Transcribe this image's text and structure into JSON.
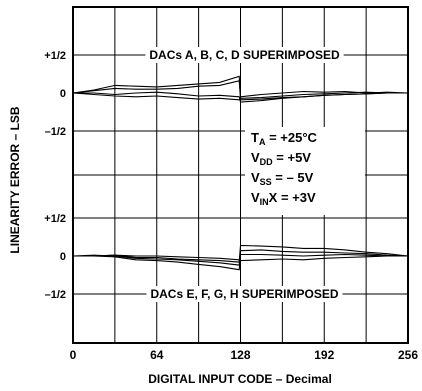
{
  "chart_data": {
    "type": "line",
    "xlabel": "DIGITAL INPUT CODE – Decimal",
    "ylabel": "LINEARITY ERROR – LSB",
    "xlim": [
      0,
      256
    ],
    "x_ticks": [
      0,
      64,
      128,
      192,
      256
    ],
    "x_tick_labels": [
      "0",
      "64",
      "128",
      "192",
      "256"
    ],
    "grid": true,
    "panels": [
      {
        "name": "top",
        "annotation": "DACs A, B, C, D SUPERIMPOSED",
        "ylim": [
          -0.75,
          0.75
        ],
        "y_ticks": [
          0.5,
          0,
          -0.5
        ],
        "y_tick_labels": [
          "+1/2",
          "0",
          "–1/2"
        ],
        "series": [
          {
            "x": [
              0,
              16,
              32,
              48,
              64,
              80,
              96,
              112,
              127,
              128,
              144,
              160,
              176,
              192,
              208,
              224,
              240,
              256
            ],
            "y": [
              0.0,
              0.04,
              0.1,
              0.09,
              0.08,
              0.1,
              0.12,
              0.14,
              0.22,
              -0.05,
              -0.02,
              0.0,
              0.02,
              0.01,
              0.02,
              0.0,
              0.01,
              0.0
            ]
          },
          {
            "x": [
              0,
              16,
              32,
              48,
              64,
              80,
              96,
              112,
              127,
              128,
              144,
              160,
              176,
              192,
              208,
              224,
              240,
              256
            ],
            "y": [
              0.0,
              0.03,
              0.06,
              0.05,
              0.05,
              0.06,
              0.09,
              0.1,
              0.16,
              -0.07,
              -0.06,
              -0.04,
              -0.02,
              -0.01,
              0.0,
              0.01,
              0.0,
              0.0
            ]
          },
          {
            "x": [
              0,
              16,
              32,
              48,
              64,
              80,
              96,
              112,
              127,
              128,
              144,
              160,
              176,
              192,
              208,
              224,
              240,
              256
            ],
            "y": [
              0.0,
              0.0,
              -0.02,
              0.0,
              0.01,
              -0.01,
              -0.04,
              -0.03,
              -0.05,
              -0.12,
              -0.1,
              -0.07,
              -0.05,
              -0.03,
              -0.02,
              -0.01,
              0.0,
              0.0
            ]
          },
          {
            "x": [
              0,
              16,
              32,
              48,
              64,
              80,
              96,
              112,
              127,
              128,
              144,
              160,
              176,
              192,
              208,
              224,
              240,
              256
            ],
            "y": [
              0.0,
              -0.02,
              -0.04,
              -0.05,
              -0.04,
              -0.06,
              -0.08,
              -0.07,
              -0.09,
              -0.09,
              -0.08,
              -0.06,
              -0.05,
              -0.03,
              -0.02,
              -0.01,
              0.0,
              0.0
            ]
          }
        ]
      },
      {
        "name": "bottom",
        "annotation": "DACs E, F, G, H SUPERIMPOSED",
        "ylim": [
          -0.75,
          0.75
        ],
        "y_ticks": [
          0.5,
          0,
          -0.5
        ],
        "y_tick_labels": [
          "+1/2",
          "0",
          "–1/2"
        ],
        "series": [
          {
            "x": [
              0,
              16,
              32,
              48,
              64,
              80,
              96,
              112,
              127,
              128,
              144,
              160,
              176,
              192,
              208,
              224,
              240,
              256
            ],
            "y": [
              0.0,
              0.0,
              0.01,
              -0.02,
              -0.02,
              -0.04,
              -0.05,
              -0.06,
              -0.08,
              0.14,
              0.13,
              0.12,
              0.1,
              0.1,
              0.08,
              0.05,
              0.03,
              0.0
            ]
          },
          {
            "x": [
              0,
              16,
              32,
              48,
              64,
              80,
              96,
              112,
              127,
              128,
              144,
              160,
              176,
              192,
              208,
              224,
              240,
              256
            ],
            "y": [
              0.0,
              0.01,
              0.0,
              -0.03,
              -0.04,
              -0.05,
              -0.07,
              -0.09,
              -0.12,
              0.07,
              0.08,
              0.06,
              0.05,
              0.05,
              0.04,
              0.03,
              0.01,
              0.0
            ]
          },
          {
            "x": [
              0,
              16,
              32,
              48,
              64,
              80,
              96,
              112,
              127,
              128,
              144,
              160,
              176,
              192,
              208,
              224,
              240,
              256
            ],
            "y": [
              0.0,
              0.0,
              -0.01,
              -0.05,
              -0.06,
              -0.08,
              -0.11,
              -0.14,
              -0.18,
              0.02,
              0.02,
              0.01,
              0.0,
              0.01,
              0.02,
              0.01,
              0.0,
              0.0
            ]
          },
          {
            "x": [
              0,
              16,
              32,
              48,
              64,
              80,
              96,
              112,
              127,
              128,
              144,
              160,
              176,
              192,
              208,
              224,
              240,
              256
            ],
            "y": [
              0.0,
              0.0,
              0.01,
              0.0,
              0.0,
              -0.01,
              -0.02,
              -0.03,
              -0.05,
              -0.06,
              -0.05,
              -0.04,
              -0.05,
              -0.03,
              -0.02,
              -0.01,
              0.0,
              0.0
            ]
          }
        ]
      }
    ],
    "conditions": [
      {
        "sym": "T",
        "sub": "A",
        "tail": " = +25°C"
      },
      {
        "sym": "V",
        "sub": "DD",
        "tail": " = +5V"
      },
      {
        "sym": "V",
        "sub": "SS",
        "tail": " = – 5V"
      },
      {
        "sym": "V",
        "sub": "IN",
        "tail": "X = +3V"
      }
    ]
  }
}
